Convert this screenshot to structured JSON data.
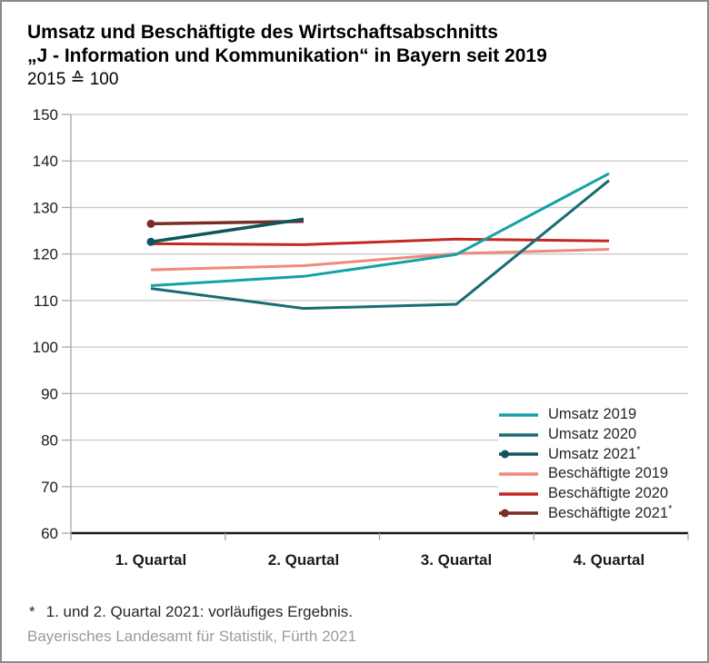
{
  "window": {
    "background": "#ffffff",
    "border_color": "#8a8a8a"
  },
  "chart_data": {
    "type": "line",
    "title_line1": "Umsatz und Beschäftigte des Wirtschaftsabschnitts",
    "title_line2": "„J - Information und Kommunikation“ in Bayern seit 2019",
    "unit_note": "2015 ≙ 100",
    "categories": [
      "1. Quartal",
      "2. Quartal",
      "3. Quartal",
      "4. Quartal"
    ],
    "series": [
      {
        "name": "Umsatz 2019",
        "legend_suffix": "",
        "color": "#12a2a7",
        "marker": false,
        "values": [
          113.2,
          115.2,
          119.9,
          137.3
        ]
      },
      {
        "name": "Umsatz 2020",
        "legend_suffix": "",
        "color": "#166d73",
        "marker": false,
        "values": [
          112.6,
          108.3,
          109.2,
          135.8
        ]
      },
      {
        "name": "Umsatz 2021",
        "legend_suffix": "*",
        "color": "#0d565e",
        "marker": true,
        "values": [
          122.6,
          127.5,
          null,
          null
        ]
      },
      {
        "name": "Beschäftigte 2019",
        "legend_suffix": "",
        "color": "#f0897d",
        "marker": false,
        "values": [
          116.6,
          117.5,
          120.1,
          121.0
        ]
      },
      {
        "name": "Beschäftigte 2020",
        "legend_suffix": "",
        "color": "#c32823",
        "marker": false,
        "values": [
          122.2,
          122.0,
          123.2,
          122.8
        ]
      },
      {
        "name": "Beschäftigte 2021",
        "legend_suffix": "*",
        "color": "#7b2c24",
        "marker": true,
        "values": [
          126.5,
          127.0,
          null,
          null
        ]
      }
    ],
    "ylim": [
      60,
      150
    ],
    "ytick_step": 10,
    "grid": true,
    "gridline_color": "#c9c9c9",
    "minor_axis_color": "#a8a8a8",
    "axis_line_color": "#1a1a1a",
    "legend_position": "right-middle",
    "draw_order": [
      3,
      4,
      0,
      1,
      5,
      2
    ]
  },
  "footnote": {
    "star": "*",
    "text": "1. und 2. Quartal 2021: vorläufiges Ergebnis."
  },
  "source": "Bayerisches Landesamt für Statistik, Fürth 2021"
}
